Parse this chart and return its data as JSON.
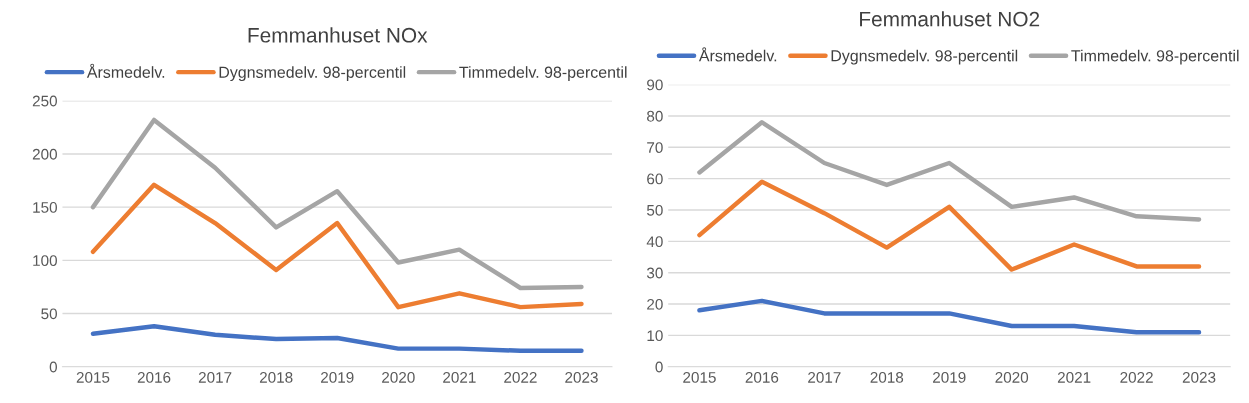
{
  "chart_data": [
    {
      "type": "line",
      "title": "Femmanhuset NOx",
      "categories": [
        "2015",
        "2016",
        "2017",
        "2018",
        "2019",
        "2020",
        "2021",
        "2022",
        "2023"
      ],
      "series": [
        {
          "name": "Årsmedelv.",
          "color": "#4472c4",
          "values": [
            31,
            38,
            30,
            26,
            27,
            17,
            17,
            15,
            15
          ]
        },
        {
          "name": "Dygnsmedelv. 98-percentil",
          "color": "#ed7d31",
          "values": [
            108,
            171,
            135,
            91,
            135,
            56,
            69,
            56,
            59
          ]
        },
        {
          "name": "Timmedelv. 98-percentil",
          "color": "#a5a5a5",
          "values": [
            150,
            232,
            187,
            131,
            165,
            98,
            110,
            74,
            75
          ]
        }
      ],
      "ylim": [
        0,
        250
      ],
      "yticks": [
        0,
        50,
        100,
        150,
        200,
        250
      ],
      "grid": "y",
      "legend": "top",
      "marker": "none",
      "line_style": "solid"
    },
    {
      "type": "line",
      "title": "Femmanhuset NO2",
      "categories": [
        "2015",
        "2016",
        "2017",
        "2018",
        "2019",
        "2020",
        "2021",
        "2022",
        "2023"
      ],
      "series": [
        {
          "name": "Årsmedelv.",
          "color": "#4472c4",
          "values": [
            18,
            21,
            17,
            17,
            17,
            13,
            13,
            11,
            11
          ]
        },
        {
          "name": "Dygnsmedelv. 98-percentil",
          "color": "#ed7d31",
          "values": [
            42,
            59,
            49,
            38,
            51,
            31,
            39,
            32,
            32
          ]
        },
        {
          "name": "Timmedelv. 98-percentil",
          "color": "#a5a5a5",
          "values": [
            62,
            78,
            65,
            58,
            65,
            51,
            54,
            48,
            47
          ]
        }
      ],
      "ylim": [
        0,
        90
      ],
      "yticks": [
        0,
        10,
        20,
        30,
        40,
        50,
        60,
        70,
        80,
        90
      ],
      "grid": "y",
      "legend": "top",
      "marker": "none",
      "line_style": "solid"
    }
  ]
}
